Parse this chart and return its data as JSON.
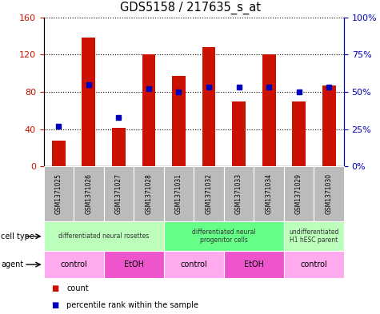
{
  "title": "GDS5158 / 217635_s_at",
  "samples": [
    "GSM1371025",
    "GSM1371026",
    "GSM1371027",
    "GSM1371028",
    "GSM1371031",
    "GSM1371032",
    "GSM1371033",
    "GSM1371034",
    "GSM1371029",
    "GSM1371030"
  ],
  "counts": [
    28,
    138,
    41,
    120,
    97,
    128,
    70,
    120,
    70,
    87
  ],
  "percentiles": [
    27,
    55,
    33,
    52,
    50,
    53,
    53,
    53,
    50,
    53
  ],
  "ylim_left": [
    0,
    160
  ],
  "ylim_right": [
    0,
    100
  ],
  "yticks_left": [
    0,
    40,
    80,
    120,
    160
  ],
  "ytick_labels_left": [
    "0",
    "40",
    "80",
    "120",
    "160"
  ],
  "yticks_right": [
    0,
    25,
    50,
    75,
    100
  ],
  "ytick_labels_right": [
    "0%",
    "25%",
    "50%",
    "75%",
    "100%"
  ],
  "bar_color": "#cc1100",
  "dot_color": "#0000bb",
  "grid_color": "#000000",
  "cell_type_groups": [
    {
      "label": "differentiated neural rosettes",
      "start": 0,
      "end": 4,
      "color": "#bbffbb"
    },
    {
      "label": "differentiated neural\nprogenitor cells",
      "start": 4,
      "end": 8,
      "color": "#66ff88"
    },
    {
      "label": "undifferentiated\nH1 hESC parent",
      "start": 8,
      "end": 10,
      "color": "#bbffbb"
    }
  ],
  "agent_groups": [
    {
      "label": "control",
      "start": 0,
      "end": 2,
      "color": "#ffaaee"
    },
    {
      "label": "EtOH",
      "start": 2,
      "end": 4,
      "color": "#ee55cc"
    },
    {
      "label": "control",
      "start": 4,
      "end": 6,
      "color": "#ffaaee"
    },
    {
      "label": "EtOH",
      "start": 6,
      "end": 8,
      "color": "#ee55cc"
    },
    {
      "label": "control",
      "start": 8,
      "end": 10,
      "color": "#ffaaee"
    }
  ],
  "cell_type_label": "cell type",
  "agent_label": "agent",
  "legend_count": "count",
  "legend_pct": "percentile rank within the sample",
  "bar_width": 0.45,
  "sample_bg_color": "#bbbbbb"
}
